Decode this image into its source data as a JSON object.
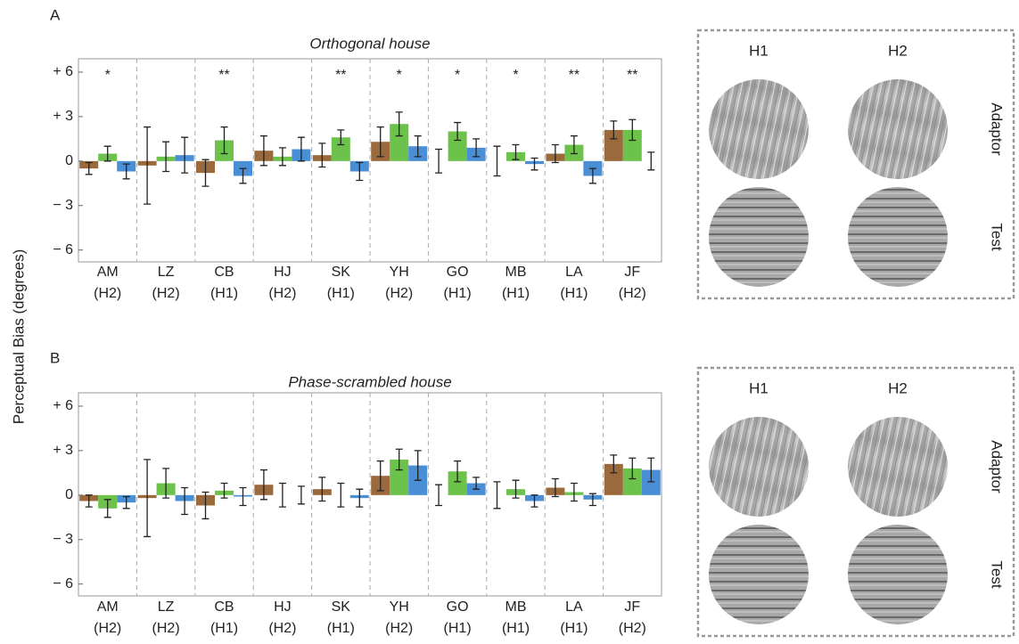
{
  "panel_labels": [
    "A",
    "B"
  ],
  "y_label": "Perceptual Bias (degrees)",
  "image_panels": [
    {
      "columns": [
        "H1",
        "H2"
      ],
      "rows": [
        "Adaptor",
        "Test"
      ]
    },
    {
      "columns": [
        "H1",
        "H2"
      ],
      "rows": [
        "Adaptor",
        "Test"
      ]
    }
  ],
  "chart_data": [
    {
      "type": "bar",
      "title": "Orthogonal house",
      "categories": [
        "AM",
        "LZ",
        "CB",
        "HJ",
        "SK",
        "YH",
        "GO",
        "MB",
        "LA",
        "JF"
      ],
      "groups": [
        "(H2)",
        "(H2)",
        "(H1)",
        "(H2)",
        "(H1)",
        "(H2)",
        "(H1)",
        "(H1)",
        "(H1)",
        "(H2)"
      ],
      "annotations": [
        "*",
        null,
        "**",
        null,
        "**",
        "*",
        "*",
        "*",
        "**",
        "**"
      ],
      "series": [
        {
          "color": "#9b6a3c",
          "values": [
            -0.5,
            -0.3,
            -0.8,
            0.7,
            0.4,
            1.3,
            0,
            0,
            0.5,
            2.1
          ],
          "errors": [
            0.4,
            2.6,
            0.9,
            1.0,
            0.8,
            1.0,
            0.8,
            1.0,
            0.6,
            0.6
          ]
        },
        {
          "color": "#6cc24a",
          "values": [
            0.5,
            0.3,
            1.4,
            0.3,
            1.6,
            2.5,
            2.0,
            0.6,
            1.1,
            2.1
          ],
          "errors": [
            0.5,
            1.0,
            0.9,
            0.6,
            0.5,
            0.8,
            0.6,
            0.5,
            0.6,
            0.7
          ]
        },
        {
          "color": "#4a8fd6",
          "values": [
            -0.7,
            0.4,
            -1.0,
            0.8,
            -0.7,
            1.0,
            0.9,
            -0.2,
            -1.0,
            0
          ],
          "errors": [
            0.5,
            1.2,
            0.5,
            0.8,
            0.6,
            0.7,
            0.6,
            0.4,
            0.5,
            0.6
          ]
        }
      ],
      "ylim": [
        -6.8,
        6.9
      ],
      "yticks": [
        {
          "value": -6,
          "label": "− 6"
        },
        {
          "value": -3,
          "label": "− 3"
        },
        0,
        {
          "value": 3,
          "label": "+ 3"
        },
        {
          "value": 6,
          "label": "+ 6"
        }
      ]
    },
    {
      "type": "bar",
      "title": "Phase-scrambled house",
      "categories": [
        "AM",
        "LZ",
        "CB",
        "HJ",
        "SK",
        "YH",
        "GO",
        "MB",
        "LA",
        "JF"
      ],
      "groups": [
        "(H2)",
        "(H2)",
        "(H1)",
        "(H2)",
        "(H1)",
        "(H2)",
        "(H1)",
        "(H1)",
        "(H1)",
        "(H2)"
      ],
      "series": [
        {
          "color": "#9b6a3c",
          "values": [
            -0.4,
            -0.2,
            -0.7,
            0.7,
            0.4,
            1.3,
            0,
            0,
            0.5,
            2.1
          ],
          "errors": [
            0.4,
            2.6,
            0.9,
            1.0,
            0.8,
            1.0,
            0.7,
            0.9,
            0.6,
            0.6
          ]
        },
        {
          "color": "#6cc24a",
          "values": [
            -0.9,
            0.8,
            0.3,
            0,
            0,
            2.4,
            1.6,
            0.4,
            0.2,
            1.8
          ],
          "errors": [
            0.6,
            1.0,
            0.5,
            0.8,
            0.8,
            0.7,
            0.7,
            0.6,
            0.6,
            0.7
          ]
        },
        {
          "color": "#4a8fd6",
          "values": [
            -0.5,
            -0.4,
            -0.1,
            0,
            -0.2,
            2.0,
            0.8,
            -0.4,
            -0.3,
            1.7
          ],
          "errors": [
            0.4,
            0.9,
            0.6,
            0.6,
            0.6,
            1.0,
            0.4,
            0.4,
            0.4,
            0.8
          ]
        }
      ],
      "ylim": [
        -6.8,
        6.9
      ],
      "yticks": [
        {
          "value": -6,
          "label": "− 6"
        },
        {
          "value": -3,
          "label": "− 3"
        },
        0,
        {
          "value": 3,
          "label": "+ 3"
        },
        {
          "value": 6,
          "label": "+ 6"
        }
      ]
    }
  ]
}
